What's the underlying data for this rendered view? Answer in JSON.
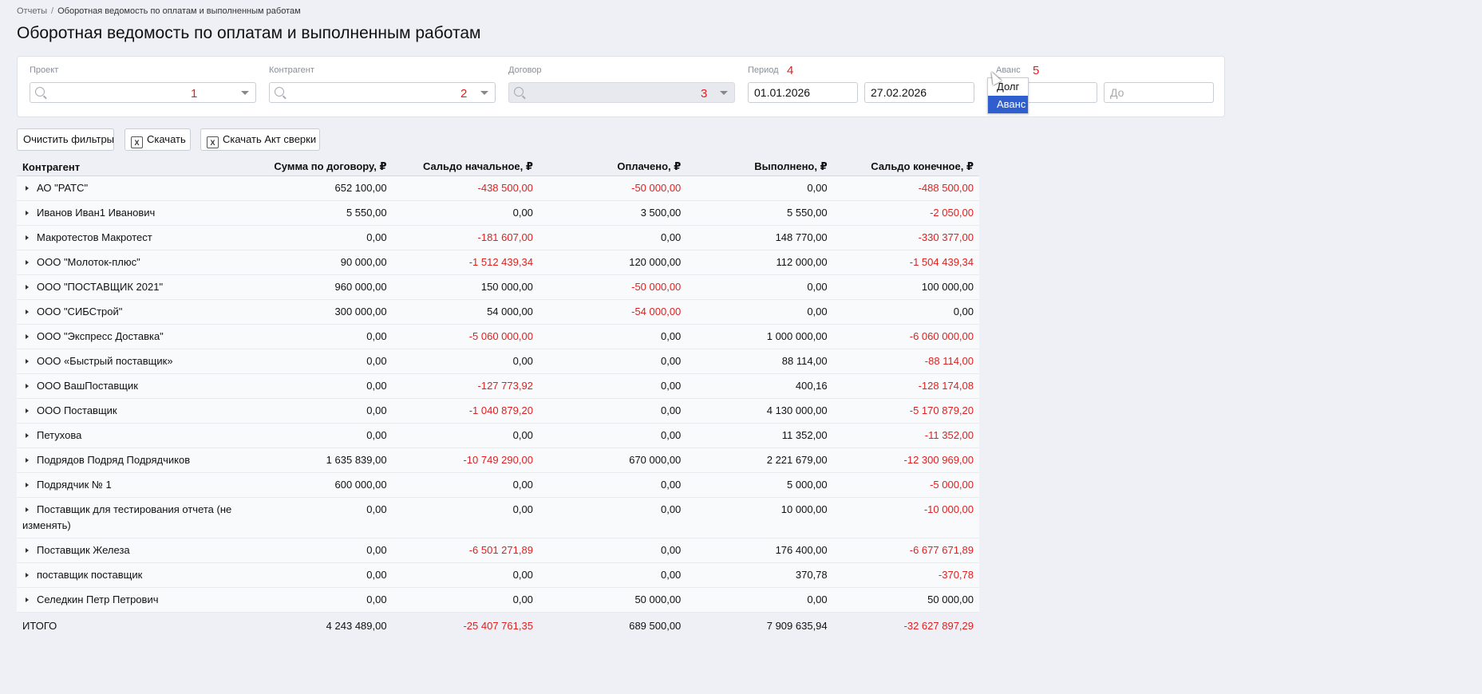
{
  "breadcrumb": {
    "root": "Отчеты",
    "separator": "/",
    "current": "Оборотная ведомость по оплатам и выполненным работам"
  },
  "title": "Оборотная ведомость по оплатам и выполненным работам",
  "filters": {
    "project": {
      "label": "Проект",
      "marker": "1"
    },
    "counterparty": {
      "label": "Контрагент",
      "marker": "2"
    },
    "contract": {
      "label": "Договор",
      "marker": "3"
    },
    "period": {
      "label": "Период",
      "marker": "4",
      "from": "01.01.2026",
      "to": "27.02.2026"
    },
    "advance": {
      "label": "Аванс",
      "marker": "5",
      "to_placeholder": "До",
      "options": [
        "Долг",
        "Аванс"
      ],
      "selected": "Аванс"
    }
  },
  "toolbar": {
    "clear": "Очистить фильтры",
    "download": "Скачать",
    "download_act": "Скачать Акт сверки",
    "xls_icon": "X"
  },
  "table": {
    "headers": [
      "Контрагент",
      "Сумма по договору, ₽",
      "Сальдо начальное, ₽",
      "Оплачено, ₽",
      "Выполнено, ₽",
      "Сальдо конечное, ₽"
    ],
    "rows": [
      [
        "АО \"РАТС\"",
        "652 100,00",
        "-438 500,00",
        "-50 000,00",
        "0,00",
        "-488 500,00"
      ],
      [
        "Иванов Иван1 Иванович",
        "5 550,00",
        "0,00",
        "3 500,00",
        "5 550,00",
        "-2 050,00"
      ],
      [
        "Макротестов Макротест",
        "0,00",
        "-181 607,00",
        "0,00",
        "148 770,00",
        "-330 377,00"
      ],
      [
        "ООО \"Молоток-плюс\"",
        "90 000,00",
        "-1 512 439,34",
        "120 000,00",
        "112 000,00",
        "-1 504 439,34"
      ],
      [
        "ООО \"ПОСТАВЩИК 2021\"",
        "960 000,00",
        "150 000,00",
        "-50 000,00",
        "0,00",
        "100 000,00"
      ],
      [
        "ООО \"СИБСтрой\"",
        "300 000,00",
        "54 000,00",
        "-54 000,00",
        "0,00",
        "0,00"
      ],
      [
        "ООО \"Экспресс Доставка\"",
        "0,00",
        "-5 060 000,00",
        "0,00",
        "1 000 000,00",
        "-6 060 000,00"
      ],
      [
        "ООО «Быстрый поставщик»",
        "0,00",
        "0,00",
        "0,00",
        "88 114,00",
        "-88 114,00"
      ],
      [
        "ООО ВашПоставщик",
        "0,00",
        "-127 773,92",
        "0,00",
        "400,16",
        "-128 174,08"
      ],
      [
        "ООО Поставщик",
        "0,00",
        "-1 040 879,20",
        "0,00",
        "4 130 000,00",
        "-5 170 879,20"
      ],
      [
        "Петухова",
        "0,00",
        "0,00",
        "0,00",
        "11 352,00",
        "-11 352,00"
      ],
      [
        "Подрядов Подряд Подрядчиков",
        "1 635 839,00",
        "-10 749 290,00",
        "670 000,00",
        "2 221 679,00",
        "-12 300 969,00"
      ],
      [
        "Подрядчик № 1",
        "600 000,00",
        "0,00",
        "0,00",
        "5 000,00",
        "-5 000,00"
      ],
      [
        "Поставщик для тестирования отчета (не изменять)",
        "0,00",
        "0,00",
        "0,00",
        "10 000,00",
        "-10 000,00"
      ],
      [
        "Поставщик Железа",
        "0,00",
        "-6 501 271,89",
        "0,00",
        "176 400,00",
        "-6 677 671,89"
      ],
      [
        "поставщик поставщик",
        "0,00",
        "0,00",
        "0,00",
        "370,78",
        "-370,78"
      ],
      [
        "Селедкин Петр Петрович",
        "0,00",
        "0,00",
        "50 000,00",
        "0,00",
        "50 000,00"
      ]
    ],
    "total": [
      "ИТОГО",
      "4 243 489,00",
      "-25 407 761,35",
      "689 500,00",
      "7 909 635,94",
      "-32 627 897,29"
    ]
  },
  "colors": {
    "negative": "#e02020",
    "selected_option": "#2f5fcf",
    "marker": "#e02020"
  }
}
